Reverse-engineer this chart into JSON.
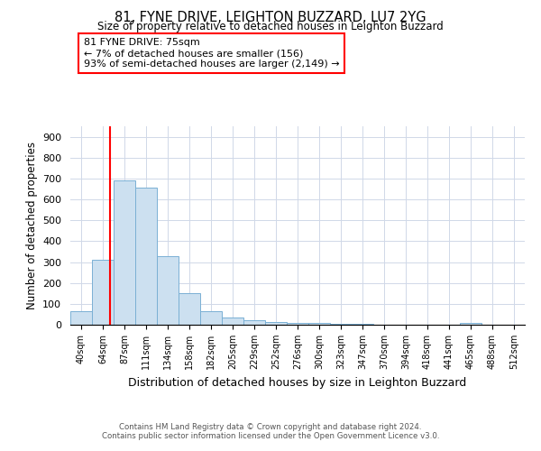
{
  "title1": "81, FYNE DRIVE, LEIGHTON BUZZARD, LU7 2YG",
  "title2": "Size of property relative to detached houses in Leighton Buzzard",
  "xlabel": "Distribution of detached houses by size in Leighton Buzzard",
  "ylabel": "Number of detached properties",
  "categories": [
    "40sqm",
    "64sqm",
    "87sqm",
    "111sqm",
    "134sqm",
    "158sqm",
    "182sqm",
    "205sqm",
    "229sqm",
    "252sqm",
    "276sqm",
    "300sqm",
    "323sqm",
    "347sqm",
    "370sqm",
    "394sqm",
    "418sqm",
    "441sqm",
    "465sqm",
    "488sqm",
    "512sqm"
  ],
  "values": [
    63,
    310,
    690,
    655,
    330,
    150,
    65,
    35,
    20,
    12,
    8,
    8,
    5,
    3,
    0,
    0,
    0,
    0,
    8,
    0,
    0
  ],
  "bar_color": "#cce0f0",
  "bar_edge_color": "#7ab0d4",
  "ylim": [
    0,
    950
  ],
  "yticks": [
    0,
    100,
    200,
    300,
    400,
    500,
    600,
    700,
    800,
    900
  ],
  "red_line_x": 1.35,
  "annotation_line1": "81 FYNE DRIVE: 75sqm",
  "annotation_line2": "← 7% of detached houses are smaller (156)",
  "annotation_line3": "93% of semi-detached houses are larger (2,149) →",
  "footer1": "Contains HM Land Registry data © Crown copyright and database right 2024.",
  "footer2": "Contains public sector information licensed under the Open Government Licence v3.0.",
  "background_color": "#ffffff",
  "grid_color": "#d0d8e8"
}
